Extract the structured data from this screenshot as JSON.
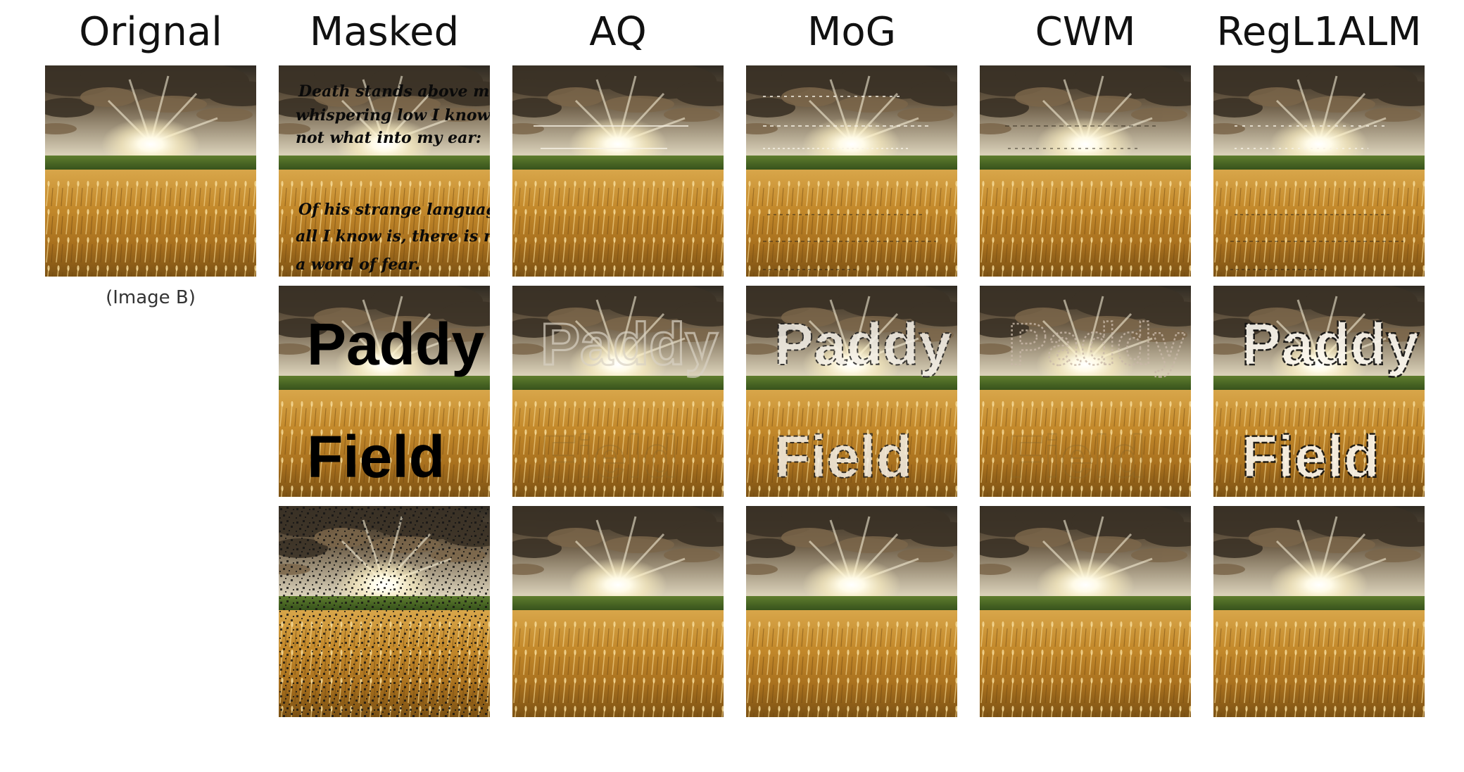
{
  "figure": {
    "columns": [
      {
        "key": "original",
        "label": "Orignal"
      },
      {
        "key": "masked",
        "label": "Masked"
      },
      {
        "key": "aq",
        "label": "AQ"
      },
      {
        "key": "mog",
        "label": "MoG"
      },
      {
        "key": "cwm",
        "label": "CWM"
      },
      {
        "key": "regl1alm",
        "label": "RegL1ALM"
      }
    ],
    "original_caption": "(Image B)",
    "mask_text": {
      "poem_lines": [
        "Death stands above me,",
        "whispering low I know",
        "not what into my ear:",
        "",
        "Of his strange language",
        "all I know is, there is not",
        "a word of fear."
      ],
      "word_top": "Paddy",
      "word_bottom": "Field"
    },
    "rows": [
      {
        "mask": "text"
      },
      {
        "mask": "bold-words"
      },
      {
        "mask": "random-pixels"
      }
    ]
  }
}
